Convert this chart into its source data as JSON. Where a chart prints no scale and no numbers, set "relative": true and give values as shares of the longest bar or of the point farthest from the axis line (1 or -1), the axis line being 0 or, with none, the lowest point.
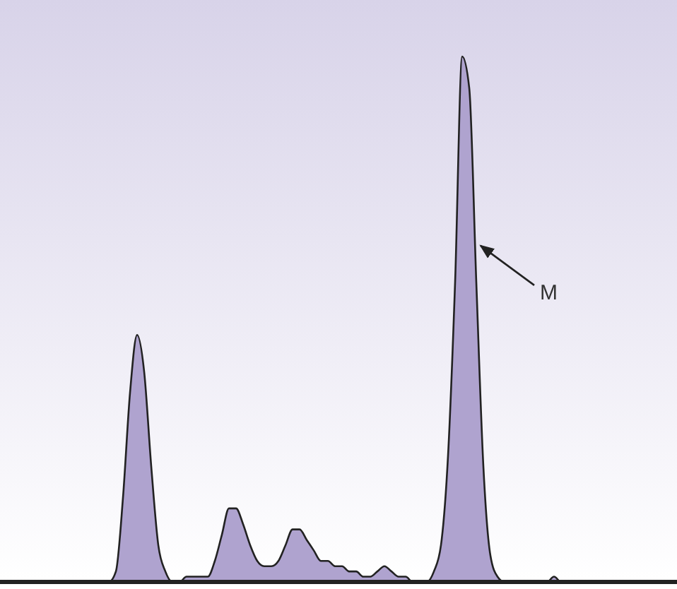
{
  "chart_data": {
    "type": "area",
    "relative": true,
    "color": "#afa3cf",
    "categories": [
      null,
      null,
      null,
      null,
      null,
      null,
      null,
      null,
      null,
      null,
      null,
      null,
      null,
      null,
      null,
      null,
      null,
      null,
      null,
      null,
      null,
      null,
      null,
      null,
      null,
      null,
      null,
      null,
      null,
      null,
      null,
      null,
      null,
      null,
      null,
      null,
      null,
      null,
      null,
      null,
      null,
      null,
      null,
      null,
      null,
      null,
      null,
      null,
      null,
      null,
      null,
      null,
      null,
      null,
      null,
      null,
      null,
      null,
      null,
      null,
      null,
      null,
      null,
      null,
      null,
      null,
      null,
      null,
      null,
      null,
      null,
      null,
      null,
      null,
      null,
      null,
      null,
      null,
      null,
      null,
      null,
      null,
      null,
      null,
      null,
      null,
      null,
      null,
      null,
      null,
      null,
      null,
      null,
      null,
      null,
      null
    ],
    "values": [
      0,
      0,
      0,
      0,
      0,
      0,
      0,
      0,
      0,
      0,
      0,
      0,
      0,
      0,
      0,
      0,
      0.02,
      0.16,
      0.36,
      0.47,
      0.4,
      0.22,
      0.07,
      0.02,
      0,
      0,
      0.01,
      0.01,
      0.01,
      0.01,
      0.04,
      0.09,
      0.14,
      0.14,
      0.11,
      0.07,
      0.04,
      0.03,
      0.03,
      0.04,
      0.07,
      0.1,
      0.1,
      0.08,
      0.06,
      0.04,
      0.04,
      0.03,
      0.03,
      0.02,
      0.02,
      0.01,
      0.01,
      0.02,
      0.03,
      0.02,
      0.01,
      0.01,
      0,
      0,
      0,
      0.02,
      0.07,
      0.24,
      0.57,
      1,
      0.94,
      0.57,
      0.22,
      0.05,
      0.01,
      0,
      0,
      0,
      0,
      0,
      0,
      0,
      0.01,
      0,
      0,
      0,
      0,
      0,
      0,
      0,
      0,
      0,
      0,
      0,
      0,
      0,
      0,
      0,
      0,
      0
    ],
    "annotations": [
      "M"
    ]
  }
}
